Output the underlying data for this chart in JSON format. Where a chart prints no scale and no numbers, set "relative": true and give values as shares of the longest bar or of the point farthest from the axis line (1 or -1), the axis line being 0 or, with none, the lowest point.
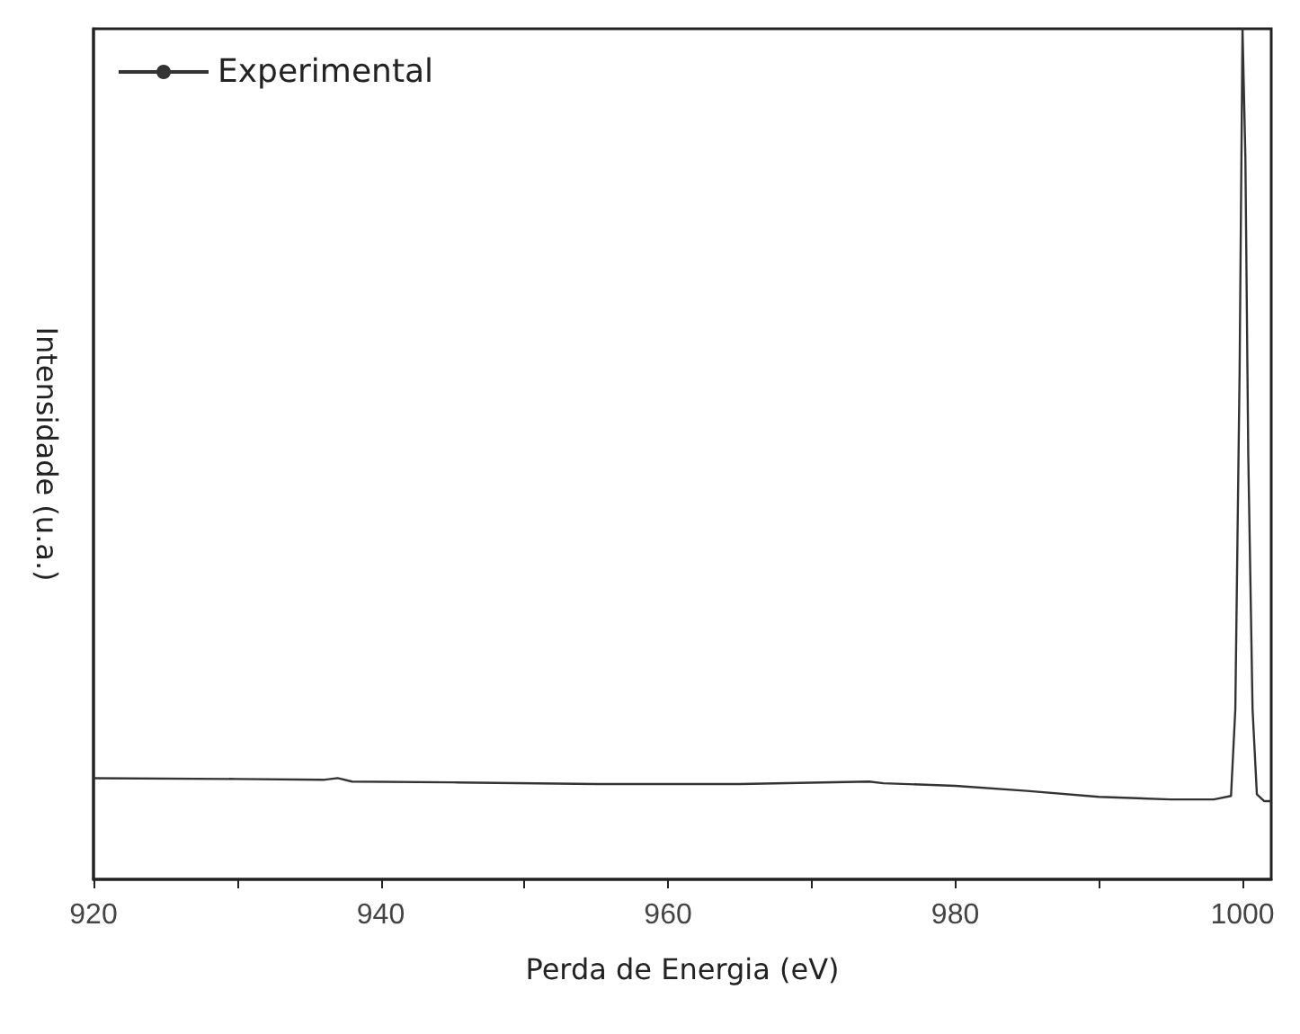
{
  "chart_data": {
    "type": "line",
    "xlabel": "Perda de Energia (eV)",
    "ylabel": "Intensidade (u.a.)",
    "relative": true,
    "xlim": [
      920,
      1002
    ],
    "xticks": [
      920,
      {
        "value": 930,
        "label": null
      },
      940,
      {
        "value": 950,
        "label": null
      },
      960,
      {
        "value": 970,
        "label": null
      },
      980,
      {
        "value": 990,
        "label": null
      },
      1000
    ],
    "legend": "top left",
    "grid": false,
    "marker": "none",
    "line_style": "solid",
    "series": [
      {
        "name": "Experimental",
        "color": "#333333",
        "x": [
          920,
          930,
          936,
          937,
          938,
          945,
          955,
          965,
          974,
          975,
          980,
          985,
          990,
          995,
          998,
          999.2,
          999.5,
          999.8,
          1000,
          1000.2,
          1000.4,
          1000.7,
          1001,
          1001.5,
          1002
        ],
        "values": [
          0.119,
          0.118,
          0.117,
          0.119,
          0.115,
          0.114,
          0.112,
          0.112,
          0.115,
          0.113,
          0.11,
          0.104,
          0.097,
          0.094,
          0.094,
          0.098,
          0.2,
          0.6,
          1.0,
          0.85,
          0.5,
          0.2,
          0.1,
          0.092,
          0.092
        ]
      }
    ]
  }
}
